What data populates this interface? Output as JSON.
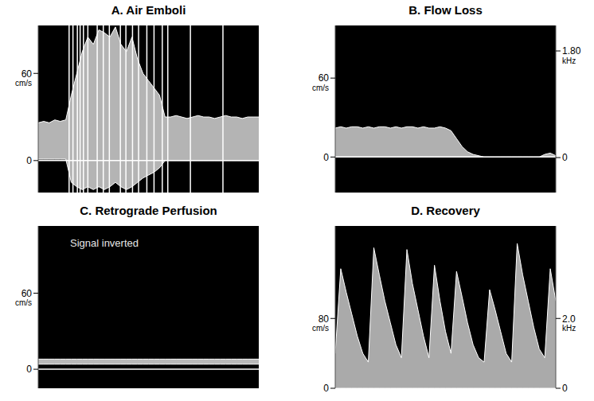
{
  "chart_data": [
    {
      "type": "area",
      "title": "A. Air Emboli",
      "ylabel": "cm/s",
      "tick_labels": "y",
      "color": "#d4d4d4",
      "x": [
        0,
        1,
        2,
        3,
        4,
        5,
        6,
        7,
        8,
        9,
        10,
        11,
        12,
        13,
        14,
        15,
        16,
        17,
        18,
        19,
        20,
        21,
        22,
        23,
        24,
        25,
        26,
        27,
        28,
        29,
        30,
        31,
        32,
        33,
        34,
        35,
        36,
        37,
        38,
        39,
        40
      ],
      "xlim": [
        0,
        40
      ],
      "ylim": [
        -22,
        93
      ],
      "yticks": [
        0,
        60
      ],
      "upper": [
        26,
        27,
        26,
        28,
        27,
        28,
        45,
        60,
        75,
        85,
        80,
        90,
        88,
        85,
        92,
        80,
        75,
        85,
        70,
        60,
        55,
        50,
        45,
        30,
        30,
        31,
        30,
        29,
        30,
        31,
        30,
        30,
        29,
        30,
        31,
        30,
        30,
        29,
        30,
        30,
        30
      ],
      "lower": [
        1,
        1,
        1,
        1,
        1,
        1,
        -15,
        -18,
        -20,
        -18,
        -20,
        -18,
        -20,
        -18,
        -15,
        -18,
        -20,
        -18,
        -15,
        -12,
        -10,
        -8,
        -5,
        0,
        0,
        0,
        0,
        0,
        0,
        0,
        0,
        0,
        0,
        0,
        0,
        0,
        0,
        0,
        0,
        0,
        0
      ],
      "emboli": [
        5.6,
        6.3,
        7.1,
        7.6,
        8.2,
        9.0,
        10.7,
        11.8,
        12.9,
        14.9,
        15.9,
        17.1,
        18.2,
        19.7,
        21.0,
        22.5,
        23.5,
        27.6,
        33.5
      ]
    },
    {
      "type": "area",
      "title": "B. Flow Loss",
      "ylabel": "cm/s",
      "y2label": "kHz",
      "tick_labels": "y",
      "color": "#cfcfcf",
      "x": [
        0,
        1,
        2,
        3,
        4,
        5,
        6,
        7,
        8,
        9,
        10,
        11,
        12,
        13,
        14,
        15,
        16,
        17,
        18,
        19,
        20,
        21,
        22,
        23,
        24,
        25,
        26,
        27,
        28,
        29,
        30,
        31,
        32,
        33,
        34,
        35,
        36,
        37,
        38,
        39,
        40
      ],
      "xlim": [
        0,
        40
      ],
      "ylim": [
        -27,
        100
      ],
      "yticks": [
        0,
        60
      ],
      "y2lim": [
        -0.59,
        2.23
      ],
      "y2ticks": [
        0,
        {
          "value": 1.8,
          "label": "1.80"
        }
      ],
      "upper": [
        22,
        23,
        22,
        23,
        23,
        22,
        23,
        22,
        23,
        23,
        22,
        23,
        22,
        23,
        23,
        22,
        23,
        22,
        22,
        23,
        22,
        20,
        14,
        8,
        4,
        2,
        1,
        0,
        0,
        0,
        0,
        0,
        0,
        0,
        0,
        0,
        0,
        0,
        2,
        3,
        1
      ],
      "lower": [
        0,
        0,
        0,
        0,
        0,
        0,
        0,
        0,
        0,
        0,
        0,
        0,
        0,
        0,
        0,
        0,
        0,
        0,
        0,
        0,
        0,
        0,
        0,
        0,
        0,
        0,
        0,
        0,
        0,
        0,
        0,
        0,
        0,
        0,
        0,
        0,
        0,
        0,
        0,
        0,
        0
      ]
    },
    {
      "type": "area",
      "title": "C. Retrograde Perfusion",
      "ylabel": "cm/s",
      "tick_labels": "y",
      "color": "#d9d9d9",
      "annotations": [
        "Signal inverted"
      ],
      "x": [
        0,
        1,
        2,
        3,
        4,
        5,
        6,
        7,
        8,
        9,
        10,
        11,
        12,
        13,
        14,
        15,
        16,
        17,
        18,
        19,
        20,
        21,
        22,
        23,
        24,
        25,
        26,
        27,
        28,
        29,
        30,
        31,
        32,
        33,
        34,
        35,
        36,
        37,
        38,
        39,
        40
      ],
      "xlim": [
        0,
        40
      ],
      "ylim": [
        -15,
        113
      ],
      "yticks": [
        0,
        60
      ],
      "upper": [
        8,
        8,
        8,
        8,
        8,
        8,
        8,
        8,
        8,
        8,
        8,
        8,
        8,
        8,
        8,
        8,
        8,
        8,
        8,
        8,
        8,
        8,
        8,
        8,
        8,
        8,
        8,
        8,
        8,
        8,
        8,
        8,
        8,
        8,
        8,
        8,
        8,
        8,
        8,
        8,
        8
      ],
      "lower": [
        4,
        4,
        4,
        4,
        4,
        4,
        4,
        4,
        4,
        4,
        4,
        4,
        4,
        4,
        4,
        4,
        4,
        4,
        4,
        4,
        4,
        4,
        4,
        4,
        4,
        4,
        4,
        4,
        4,
        4,
        4,
        4,
        4,
        4,
        4,
        4,
        4,
        4,
        4,
        4,
        4
      ]
    },
    {
      "type": "area",
      "title": "D. Recovery",
      "ylabel": "cm/s",
      "y2label": "kHz",
      "tick_labels": "y",
      "color": "#c8c8c8",
      "x": [
        0,
        1,
        2,
        3,
        4,
        5,
        6,
        7,
        8,
        9,
        10,
        11,
        12,
        13,
        14,
        15,
        16,
        17,
        18,
        19,
        20,
        21,
        22,
        23,
        24,
        25,
        26,
        27,
        28,
        29,
        30,
        31,
        32,
        33,
        34,
        35,
        36,
        37,
        38,
        39,
        40
      ],
      "xlim": [
        0,
        40
      ],
      "ylim": [
        0,
        186
      ],
      "yticks": [
        0,
        80
      ],
      "y2lim": [
        0,
        4.65
      ],
      "y2ticks": [
        0,
        {
          "value": 2,
          "label": "2.0"
        }
      ],
      "upper": [
        40,
        137,
        110,
        85,
        60,
        40,
        30,
        161,
        130,
        100,
        75,
        50,
        35,
        159,
        120,
        90,
        60,
        35,
        141,
        100,
        65,
        40,
        134,
        105,
        75,
        50,
        35,
        30,
        113,
        90,
        65,
        40,
        30,
        166,
        130,
        100,
        70,
        45,
        35,
        137,
        100
      ],
      "lower": [
        0,
        0,
        0,
        0,
        0,
        0,
        0,
        0,
        0,
        0,
        0,
        0,
        0,
        0,
        0,
        0,
        0,
        0,
        0,
        0,
        0,
        0,
        0,
        0,
        0,
        0,
        0,
        0,
        0,
        0,
        0,
        0,
        0,
        0,
        0,
        0,
        0,
        0,
        0,
        0,
        0
      ]
    }
  ]
}
